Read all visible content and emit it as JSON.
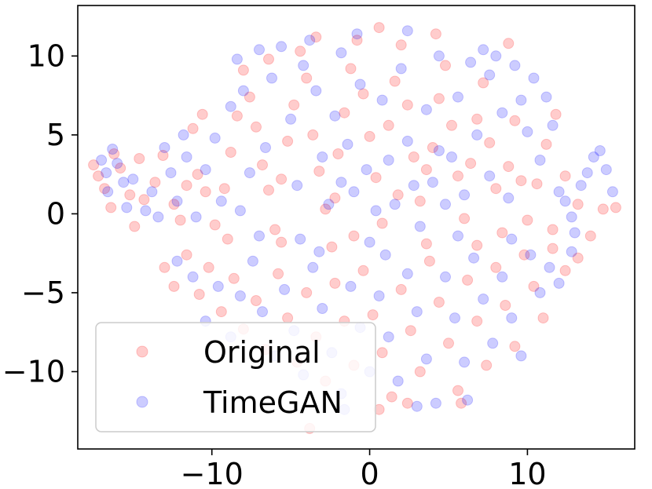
{
  "chart_data": {
    "type": "scatter",
    "title": "",
    "xlabel": "",
    "ylabel": "",
    "xlim": [
      -18.5,
      16.8
    ],
    "ylim": [
      -14.9,
      13.2
    ],
    "x_ticks": [
      -10,
      0,
      10
    ],
    "x_tick_labels": [
      "−10",
      "0",
      "10"
    ],
    "y_ticks": [
      -10,
      -5,
      0,
      5,
      10
    ],
    "y_tick_labels": [
      "−10",
      "−5",
      "0",
      "5",
      "10"
    ],
    "grid": false,
    "legend_position": "lower-left",
    "marker_alpha": 0.2,
    "series": [
      {
        "name": "Original",
        "color": "#ff0000",
        "points": [
          [
            -17.5,
            3.1
          ],
          [
            -17.2,
            2.4
          ],
          [
            -16.8,
            1.6
          ],
          [
            -16.2,
            3.8
          ],
          [
            -15.8,
            2.9
          ],
          [
            -15.2,
            1.2
          ],
          [
            -14.9,
            -0.8
          ],
          [
            -14.3,
            0.9
          ],
          [
            -13.6,
            2.0
          ],
          [
            -13.1,
            3.7
          ],
          [
            -12.4,
            0.6
          ],
          [
            -12.0,
            -0.4
          ],
          [
            -11.6,
            1.8
          ],
          [
            -11.2,
            5.4
          ],
          [
            -10.9,
            2.5
          ],
          [
            -10.4,
            1.4
          ],
          [
            -9.8,
            -0.7
          ],
          [
            -9.2,
            1.6
          ],
          [
            -8.8,
            3.9
          ],
          [
            -8.4,
            6.2
          ],
          [
            -8.0,
            9.1
          ],
          [
            -7.6,
            7.4
          ],
          [
            -7.2,
            5.5
          ],
          [
            -6.8,
            3.1
          ],
          [
            -6.4,
            1.5
          ],
          [
            -6.0,
            -1.0
          ],
          [
            -5.6,
            2.2
          ],
          [
            -5.2,
            4.6
          ],
          [
            -4.8,
            6.9
          ],
          [
            -4.4,
            10.3
          ],
          [
            -4.0,
            8.6
          ],
          [
            -3.6,
            5.0
          ],
          [
            -3.2,
            2.7
          ],
          [
            -2.8,
            0.3
          ],
          [
            -2.4,
            -2.1
          ],
          [
            -2.0,
            3.8
          ],
          [
            -1.6,
            6.4
          ],
          [
            -1.2,
            9.2
          ],
          [
            -0.8,
            11.0
          ],
          [
            -0.4,
            7.6
          ],
          [
            0.0,
            4.9
          ],
          [
            0.4,
            2.3
          ],
          [
            0.8,
            -0.6
          ],
          [
            1.2,
            5.6
          ],
          [
            1.6,
            8.4
          ],
          [
            2.0,
            10.7
          ],
          [
            2.4,
            6.9
          ],
          [
            2.8,
            3.6
          ],
          [
            3.2,
            0.8
          ],
          [
            3.6,
            -1.9
          ],
          [
            4.0,
            4.2
          ],
          [
            4.4,
            7.3
          ],
          [
            4.8,
            9.4
          ],
          [
            5.2,
            5.6
          ],
          [
            5.6,
            2.4
          ],
          [
            6.0,
            -0.3
          ],
          [
            6.4,
            3.2
          ],
          [
            6.8,
            6.0
          ],
          [
            7.2,
            8.3
          ],
          [
            7.6,
            4.5
          ],
          [
            8.0,
            1.6
          ],
          [
            8.4,
            -1.2
          ],
          [
            8.8,
            3.0
          ],
          [
            9.2,
            5.9
          ],
          [
            9.6,
            2.1
          ],
          [
            10.0,
            -0.4
          ],
          [
            10.6,
            1.9
          ],
          [
            11.2,
            4.4
          ],
          [
            11.8,
            6.3
          ],
          [
            12.4,
            2.4
          ],
          [
            13.2,
            0.6
          ],
          [
            14.0,
            -1.4
          ],
          [
            14.8,
            0.3
          ],
          [
            15.6,
            0.4
          ],
          [
            -13.0,
            -3.4
          ],
          [
            -12.4,
            -4.6
          ],
          [
            -11.6,
            -2.6
          ],
          [
            -10.8,
            -5.1
          ],
          [
            -10.2,
            -3.4
          ],
          [
            -9.4,
            -6.2
          ],
          [
            -8.6,
            -4.1
          ],
          [
            -8.0,
            -7.3
          ],
          [
            -7.2,
            -5.5
          ],
          [
            -6.6,
            -8.6
          ],
          [
            -5.8,
            -3.8
          ],
          [
            -5.2,
            -6.6
          ],
          [
            -4.6,
            -9.4
          ],
          [
            -4.0,
            -5.0
          ],
          [
            -3.4,
            -7.8
          ],
          [
            -2.8,
            -10.6
          ],
          [
            -2.2,
            -4.4
          ],
          [
            -1.6,
            -6.8
          ],
          [
            -1.0,
            -9.6
          ],
          [
            -0.4,
            -3.6
          ],
          [
            0.2,
            -6.4
          ],
          [
            0.8,
            -8.8
          ],
          [
            1.4,
            -11.6
          ],
          [
            2.0,
            -4.8
          ],
          [
            2.6,
            -7.4
          ],
          [
            3.2,
            -10.0
          ],
          [
            3.8,
            -3.0
          ],
          [
            4.4,
            -5.6
          ],
          [
            5.0,
            -8.2
          ],
          [
            5.6,
            -11.2
          ],
          [
            6.2,
            -4.2
          ],
          [
            6.8,
            -6.8
          ],
          [
            7.4,
            -9.6
          ],
          [
            8.0,
            -3.4
          ],
          [
            8.6,
            -5.8
          ],
          [
            9.2,
            -8.4
          ],
          [
            9.8,
            -2.6
          ],
          [
            10.4,
            -4.6
          ],
          [
            11.0,
            -6.6
          ],
          [
            11.6,
            -2.2
          ],
          [
            12.4,
            -3.6
          ],
          [
            13.2,
            -2.8
          ],
          [
            -3.8,
            -13.6
          ],
          [
            0.6,
            -12.4
          ],
          [
            2.4,
            -12.0
          ],
          [
            5.8,
            -12.0
          ],
          [
            8.8,
            10.8
          ],
          [
            -3.4,
            11.2
          ],
          [
            0.6,
            11.8
          ],
          [
            4.2,
            11.4
          ],
          [
            -6.4,
            9.8
          ],
          [
            -10.6,
            6.3
          ],
          [
            -14.6,
            3.5
          ],
          [
            -16.4,
            0.4
          ],
          [
            1.8,
            1.2
          ],
          [
            -2.2,
            1.0
          ],
          [
            3.6,
            2.8
          ],
          [
            -5.6,
            -1.8
          ],
          [
            6.8,
            -2.0
          ],
          [
            -9.0,
            -1.6
          ],
          [
            11.6,
            -1.0
          ],
          [
            -1.0,
            -1.4
          ]
        ]
      },
      {
        "name": "TimeGAN",
        "color": "#0000ff",
        "points": [
          [
            -17.0,
            3.4
          ],
          [
            -16.7,
            2.6
          ],
          [
            -16.6,
            1.4
          ],
          [
            -16.3,
            4.1
          ],
          [
            -16.0,
            3.2
          ],
          [
            -15.4,
            0.4
          ],
          [
            -15.0,
            2.2
          ],
          [
            -14.2,
            0.2
          ],
          [
            -13.4,
            -0.2
          ],
          [
            -13.0,
            4.2
          ],
          [
            -12.6,
            2.6
          ],
          [
            -12.2,
            0.8
          ],
          [
            -11.6,
            3.6
          ],
          [
            -11.0,
            -0.2
          ],
          [
            -10.4,
            2.8
          ],
          [
            -9.8,
            4.8
          ],
          [
            -9.4,
            0.8
          ],
          [
            -8.8,
            6.8
          ],
          [
            -8.4,
            9.8
          ],
          [
            -8.0,
            7.8
          ],
          [
            -7.6,
            2.6
          ],
          [
            -7.0,
            -1.4
          ],
          [
            -6.6,
            4.2
          ],
          [
            -6.2,
            8.6
          ],
          [
            -5.6,
            10.6
          ],
          [
            -5.0,
            6.0
          ],
          [
            -4.6,
            1.8
          ],
          [
            -4.2,
            9.4
          ],
          [
            -3.8,
            11.0
          ],
          [
            -3.4,
            7.8
          ],
          [
            -3.0,
            3.6
          ],
          [
            -2.6,
            0.6
          ],
          [
            -2.2,
            6.2
          ],
          [
            -1.8,
            10.2
          ],
          [
            -1.4,
            4.4
          ],
          [
            -1.0,
            1.4
          ],
          [
            -0.6,
            8.2
          ],
          [
            -0.2,
            2.8
          ],
          [
            0.4,
            0.2
          ],
          [
            0.8,
            7.2
          ],
          [
            1.2,
            3.4
          ],
          [
            1.6,
            0.6
          ],
          [
            2.0,
            9.2
          ],
          [
            2.4,
            4.6
          ],
          [
            2.8,
            1.8
          ],
          [
            3.2,
            -0.8
          ],
          [
            3.6,
            6.6
          ],
          [
            4.0,
            2.0
          ],
          [
            4.4,
            10.0
          ],
          [
            4.8,
            0.6
          ],
          [
            5.2,
            3.6
          ],
          [
            5.6,
            7.4
          ],
          [
            6.0,
            1.2
          ],
          [
            6.4,
            9.6
          ],
          [
            6.8,
            5.0
          ],
          [
            7.2,
            10.4
          ],
          [
            7.6,
            8.8
          ],
          [
            8.0,
            10.0
          ],
          [
            8.4,
            6.4
          ],
          [
            8.8,
            1.0
          ],
          [
            9.2,
            9.4
          ],
          [
            9.6,
            7.2
          ],
          [
            10.0,
            5.2
          ],
          [
            10.4,
            8.6
          ],
          [
            10.8,
            3.4
          ],
          [
            11.2,
            7.4
          ],
          [
            11.6,
            5.6
          ],
          [
            12.0,
            1.4
          ],
          [
            12.4,
            0.8
          ],
          [
            12.8,
            -0.2
          ],
          [
            13.4,
            1.8
          ],
          [
            13.8,
            2.6
          ],
          [
            14.2,
            3.6
          ],
          [
            14.6,
            4.0
          ],
          [
            15.0,
            2.8
          ],
          [
            15.4,
            1.4
          ],
          [
            -12.2,
            -3.0
          ],
          [
            -11.2,
            -4.0
          ],
          [
            -10.4,
            -6.8
          ],
          [
            -9.6,
            -4.6
          ],
          [
            -8.8,
            -7.8
          ],
          [
            -8.2,
            -5.2
          ],
          [
            -7.4,
            -3.0
          ],
          [
            -6.8,
            -6.2
          ],
          [
            -6.0,
            -9.0
          ],
          [
            -5.4,
            -4.8
          ],
          [
            -4.8,
            -7.4
          ],
          [
            -4.2,
            -10.2
          ],
          [
            -3.6,
            -3.4
          ],
          [
            -3.0,
            -6.0
          ],
          [
            -2.4,
            -8.8
          ],
          [
            -1.8,
            -11.4
          ],
          [
            -1.2,
            -4.6
          ],
          [
            -0.6,
            -7.2
          ],
          [
            0.0,
            -10.0
          ],
          [
            0.6,
            -5.2
          ],
          [
            1.2,
            -7.8
          ],
          [
            1.8,
            -10.6
          ],
          [
            2.4,
            -3.8
          ],
          [
            3.0,
            -6.2
          ],
          [
            3.6,
            -9.2
          ],
          [
            4.2,
            -12.0
          ],
          [
            4.8,
            -4.0
          ],
          [
            5.4,
            -6.6
          ],
          [
            6.0,
            -9.4
          ],
          [
            6.6,
            -2.8
          ],
          [
            7.2,
            -5.4
          ],
          [
            7.8,
            -8.2
          ],
          [
            8.4,
            -4.0
          ],
          [
            9.0,
            -6.6
          ],
          [
            9.6,
            -9.0
          ],
          [
            10.2,
            -2.6
          ],
          [
            10.8,
            -5.0
          ],
          [
            11.4,
            -3.4
          ],
          [
            12.0,
            -4.4
          ],
          [
            12.8,
            -2.4
          ],
          [
            -1.6,
            -12.4
          ],
          [
            3.0,
            -12.2
          ],
          [
            6.2,
            -11.8
          ],
          [
            -0.8,
            11.4
          ],
          [
            2.4,
            11.6
          ],
          [
            -7.0,
            10.4
          ],
          [
            -11.8,
            5.0
          ],
          [
            -15.6,
            2.0
          ],
          [
            0.0,
            -1.8
          ],
          [
            -4.4,
            -1.6
          ],
          [
            5.6,
            -1.4
          ],
          [
            9.0,
            -1.6
          ],
          [
            -8.2,
            0.2
          ],
          [
            -1.8,
            2.0
          ],
          [
            4.4,
            4.0
          ],
          [
            7.6,
            2.4
          ],
          [
            13.0,
            -1.2
          ],
          [
            -13.8,
            1.4
          ],
          [
            -3.2,
            -2.4
          ],
          [
            1.0,
            -2.6
          ]
        ]
      }
    ]
  }
}
